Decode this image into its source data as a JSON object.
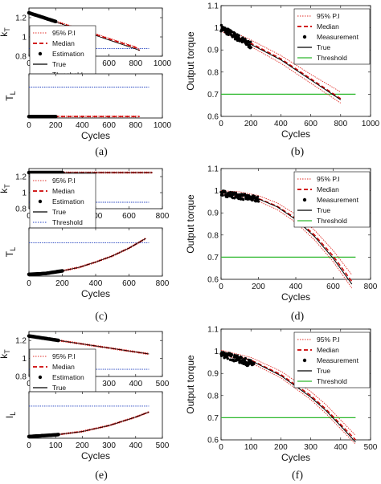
{
  "figure": {
    "captions": [
      "(a)",
      "(b)",
      "(c)",
      "(d)",
      "(e)",
      "(f)"
    ],
    "colors": {
      "band": "#e0302a",
      "median": "#cc0000",
      "measurement": "#000000",
      "true": "#000000",
      "threshold_blue": "#1f3fbf",
      "threshold_green": "#2db82d",
      "estimation": "#000000"
    }
  },
  "chart_data": [
    {
      "id": "a_top",
      "type": "line",
      "xlabel": "",
      "ylabel": "k_T",
      "xlim": [
        0,
        1000
      ],
      "ylim": [
        0.8,
        1.3
      ],
      "xticks": [
        0,
        200,
        400,
        600,
        800,
        1000
      ],
      "yticks": [
        0.8,
        1,
        1.2
      ],
      "xtick_labels": [
        "0",
        "200",
        "400",
        "600",
        "800",
        "1000"
      ],
      "ytick_labels": [
        "0.8",
        "1",
        "1.2"
      ],
      "grid": false,
      "legend_position": "bottom-left",
      "legend": [
        "95% P.I",
        "Median",
        "Estimation",
        "True",
        "Threshold"
      ],
      "estimation": {
        "x_start": 0,
        "x_end": 200
      },
      "median": {
        "x": [
          0,
          200,
          400,
          600,
          800,
          830
        ],
        "y": [
          1.25,
          1.16,
          1.07,
          0.98,
          0.89,
          0.86
        ]
      },
      "true": {
        "x": [
          0,
          830
        ],
        "y": [
          1.25,
          0.86
        ]
      },
      "threshold": 0.88
    },
    {
      "id": "a_bottom",
      "type": "line",
      "xlabel": "Cycles",
      "ylabel": "T_L",
      "xlim": [
        0,
        1000
      ],
      "ylim": [
        0,
        0.6
      ],
      "xticks": [
        0,
        200,
        400,
        600,
        800,
        1000
      ],
      "yticks": [],
      "xtick_labels": [
        "0",
        "200",
        "400",
        "600",
        "800",
        "1000"
      ],
      "ytick_labels": [],
      "grid": false,
      "estimation": {
        "x_start": 0,
        "x_end": 200,
        "y": 0.02
      },
      "median": {
        "x": [
          0,
          830
        ],
        "y": [
          0.02,
          0.02
        ]
      },
      "threshold": 0.42
    },
    {
      "id": "b",
      "type": "line",
      "xlabel": "Cycles",
      "ylabel": "Output torque",
      "xlim": [
        0,
        1000
      ],
      "ylim": [
        0.6,
        1.1
      ],
      "xticks": [
        0,
        200,
        400,
        600,
        800,
        1000
      ],
      "yticks": [
        0.6,
        0.7,
        0.8,
        0.9,
        1,
        1.1
      ],
      "xtick_labels": [
        "0",
        "200",
        "400",
        "600",
        "800",
        "1000"
      ],
      "ytick_labels": [
        "0.6",
        "0.7",
        "0.8",
        "0.9",
        "1",
        "1.1"
      ],
      "grid": false,
      "legend_position": "top-right",
      "legend": [
        "95% P.I",
        "Median",
        "Measurement",
        "True",
        "Threshold"
      ],
      "measurements": {
        "x_start": 0,
        "x_end": 200,
        "y_start": 1.0,
        "y_end": 0.92,
        "noise": 0.015
      },
      "median": {
        "x": [
          0,
          200,
          400,
          600,
          800
        ],
        "y": [
          0.995,
          0.93,
          0.86,
          0.77,
          0.68
        ]
      },
      "upper": {
        "x": [
          0,
          200,
          400,
          600,
          800
        ],
        "y": [
          1.005,
          0.945,
          0.875,
          0.79,
          0.71
        ]
      },
      "lower": {
        "x": [
          0,
          200,
          400,
          600,
          800
        ],
        "y": [
          0.985,
          0.915,
          0.84,
          0.75,
          0.66
        ]
      },
      "true": {
        "x": [
          0,
          200,
          400,
          600,
          800
        ],
        "y": [
          0.995,
          0.925,
          0.855,
          0.765,
          0.675
        ]
      },
      "threshold": 0.7
    },
    {
      "id": "c_top",
      "type": "line",
      "xlabel": "",
      "ylabel": "k_T",
      "xlim": [
        0,
        800
      ],
      "ylim": [
        0.8,
        1.3
      ],
      "xticks": [
        0,
        200,
        400,
        600,
        800
      ],
      "yticks": [
        0.8,
        1,
        1.2
      ],
      "xtick_labels": [
        "0",
        "200",
        "400",
        "600",
        "800"
      ],
      "ytick_labels": [
        "0.8",
        "1",
        "1.2"
      ],
      "grid": false,
      "legend_position": "bottom-left",
      "legend": [
        "95% P.I",
        "Median",
        "Estimation",
        "True",
        "Threshold"
      ],
      "estimation": {
        "x_start": 0,
        "x_end": 200,
        "y": 1.25
      },
      "median": {
        "x": [
          0,
          740
        ],
        "y": [
          1.25,
          1.25
        ]
      },
      "true": {
        "x": [
          0,
          740
        ],
        "y": [
          1.25,
          1.25
        ]
      },
      "threshold": 0.88
    },
    {
      "id": "c_bottom",
      "type": "line",
      "xlabel": "Cycles",
      "ylabel": "T_L",
      "xlim": [
        0,
        800
      ],
      "ylim": [
        0,
        0.55
      ],
      "xticks": [
        0,
        200,
        400,
        600,
        800
      ],
      "yticks": [],
      "xtick_labels": [
        "0",
        "200",
        "400",
        "600",
        "800"
      ],
      "ytick_labels": [],
      "grid": false,
      "estimation": {
        "x_start": 0,
        "x_end": 200
      },
      "median": {
        "x": [
          0,
          100,
          200,
          300,
          400,
          500,
          600,
          700
        ],
        "y": [
          0.02,
          0.03,
          0.06,
          0.1,
          0.16,
          0.23,
          0.32,
          0.43
        ]
      },
      "true": {
        "x": [
          0,
          100,
          200,
          300,
          400,
          500,
          600,
          700
        ],
        "y": [
          0.02,
          0.03,
          0.06,
          0.1,
          0.16,
          0.23,
          0.32,
          0.43
        ]
      },
      "threshold": 0.38
    },
    {
      "id": "d",
      "type": "line",
      "xlabel": "Cycles",
      "ylabel": "Output torque",
      "xlim": [
        0,
        800
      ],
      "ylim": [
        0.6,
        1.1
      ],
      "xticks": [
        0,
        200,
        400,
        600,
        800
      ],
      "yticks": [
        0.6,
        0.7,
        0.8,
        0.9,
        1,
        1.1
      ],
      "xtick_labels": [
        "0",
        "200",
        "400",
        "600",
        "800"
      ],
      "ytick_labels": [
        "0.6",
        "0.7",
        "0.8",
        "0.9",
        "1",
        "1.1"
      ],
      "grid": false,
      "legend_position": "top-right",
      "legend": [
        "95% P.I",
        "Median",
        "Measurement",
        "True",
        "Threshold"
      ],
      "measurements": {
        "x_start": 0,
        "x_end": 200,
        "y_start": 0.99,
        "y_end": 0.96,
        "noise": 0.013
      },
      "median": {
        "x": [
          0,
          100,
          200,
          300,
          400,
          500,
          600,
          700
        ],
        "y": [
          0.99,
          0.985,
          0.965,
          0.93,
          0.875,
          0.8,
          0.705,
          0.59
        ]
      },
      "upper": {
        "x": [
          0,
          100,
          200,
          300,
          400,
          500,
          600,
          700
        ],
        "y": [
          1.0,
          0.995,
          0.978,
          0.945,
          0.893,
          0.822,
          0.73,
          0.62
        ]
      },
      "lower": {
        "x": [
          0,
          100,
          200,
          300,
          400,
          500,
          600,
          700
        ],
        "y": [
          0.98,
          0.975,
          0.952,
          0.915,
          0.857,
          0.778,
          0.68,
          0.56
        ]
      },
      "true": {
        "x": [
          0,
          100,
          200,
          300,
          400,
          500,
          600,
          700
        ],
        "y": [
          0.99,
          0.984,
          0.963,
          0.927,
          0.87,
          0.793,
          0.695,
          0.578
        ]
      },
      "threshold": 0.7
    },
    {
      "id": "e_top",
      "type": "line",
      "xlabel": "",
      "ylabel": "k_T",
      "xlim": [
        0,
        500
      ],
      "ylim": [
        0.8,
        1.3
      ],
      "xticks": [
        0,
        100,
        200,
        300,
        400,
        500
      ],
      "yticks": [
        0.8,
        1,
        1.2
      ],
      "xtick_labels": [
        "0",
        "100",
        "200",
        "300",
        "400",
        "500"
      ],
      "ytick_labels": [
        "0.8",
        "1",
        "1.2"
      ],
      "grid": false,
      "legend_position": "bottom-left",
      "legend": [
        "95% P.I",
        "Median",
        "Estimation",
        "True",
        "Threshold"
      ],
      "estimation": {
        "x_start": 0,
        "x_end": 110
      },
      "median": {
        "x": [
          0,
          450
        ],
        "y": [
          1.25,
          1.05
        ]
      },
      "true": {
        "x": [
          0,
          450
        ],
        "y": [
          1.25,
          1.05
        ]
      },
      "threshold": 0.88
    },
    {
      "id": "e_bottom",
      "type": "line",
      "xlabel": "Cycles",
      "ylabel": "I_L",
      "xlim": [
        0,
        500
      ],
      "ylim": [
        0,
        0.55
      ],
      "xticks": [
        0,
        100,
        200,
        300,
        400,
        500
      ],
      "yticks": [],
      "xtick_labels": [
        "0",
        "100",
        "200",
        "300",
        "400",
        "500"
      ],
      "ytick_labels": [],
      "grid": false,
      "estimation": {
        "x_start": 0,
        "x_end": 110
      },
      "median": {
        "x": [
          0,
          100,
          200,
          300,
          400,
          450
        ],
        "y": [
          0.02,
          0.04,
          0.08,
          0.15,
          0.25,
          0.31
        ]
      },
      "true": {
        "x": [
          0,
          100,
          200,
          300,
          400,
          450
        ],
        "y": [
          0.02,
          0.04,
          0.08,
          0.15,
          0.25,
          0.31
        ]
      },
      "threshold": 0.38
    },
    {
      "id": "f",
      "type": "line",
      "xlabel": "Cycles",
      "ylabel": "Output torque",
      "xlim": [
        0,
        500
      ],
      "ylim": [
        0.6,
        1.1
      ],
      "xticks": [
        0,
        100,
        200,
        300,
        400,
        500
      ],
      "yticks": [
        0.6,
        0.7,
        0.8,
        0.9,
        1,
        1.1
      ],
      "xtick_labels": [
        "0",
        "100",
        "200",
        "300",
        "400",
        "500"
      ],
      "ytick_labels": [
        "0.6",
        "0.7",
        "0.8",
        "0.9",
        "1",
        "1.1"
      ],
      "grid": false,
      "legend_position": "top-right",
      "legend": [
        "95% P.I",
        "Median",
        "Measurement",
        "True",
        "Threshold"
      ],
      "measurements": {
        "x_start": 0,
        "x_end": 110,
        "y_start": 0.99,
        "y_end": 0.94,
        "noise": 0.015
      },
      "median": {
        "x": [
          0,
          100,
          200,
          300,
          350,
          400,
          450
        ],
        "y": [
          0.995,
          0.96,
          0.895,
          0.8,
          0.74,
          0.67,
          0.6
        ]
      },
      "upper": {
        "x": [
          0,
          100,
          200,
          300,
          350,
          400,
          450
        ],
        "y": [
          1.005,
          0.972,
          0.91,
          0.818,
          0.76,
          0.69,
          0.62
        ]
      },
      "lower": {
        "x": [
          0,
          100,
          200,
          300,
          350,
          400,
          450
        ],
        "y": [
          0.985,
          0.948,
          0.88,
          0.782,
          0.72,
          0.65,
          0.58
        ]
      },
      "true": {
        "x": [
          0,
          100,
          200,
          300,
          350,
          400,
          450
        ],
        "y": [
          0.995,
          0.958,
          0.89,
          0.793,
          0.733,
          0.663,
          0.59
        ]
      },
      "threshold": 0.7
    }
  ]
}
